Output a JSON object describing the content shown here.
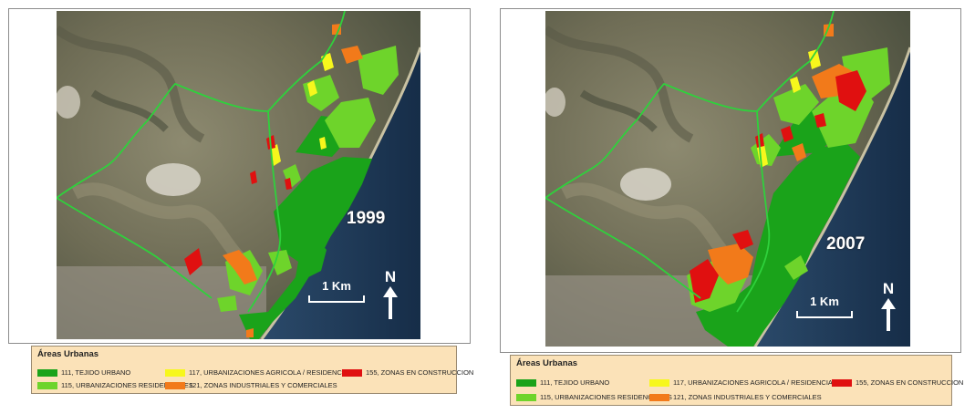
{
  "colors": {
    "tejido_urbano": "#1aa31a",
    "urbanizaciones_residenciales": "#6ed42b",
    "urbanizaciones_agricola": "#f7f71c",
    "zonas_industriales": "#f27a1a",
    "zonas_construccion": "#e01010",
    "boundary": "#2fd13c",
    "sea": "#1d3a5c",
    "legend_bg": "#fbe2b8"
  },
  "maps": [
    {
      "year": "1999",
      "scale_label": "1 Km",
      "north_label": "N",
      "legend": {
        "title": "Áreas Urbanas",
        "items": [
          {
            "label": "111, TEJIDO URBANO",
            "color": "#1aa31a"
          },
          {
            "label": "115, URBANIZACIONES RESIDENCIALES",
            "color": "#6ed42b"
          },
          {
            "label": "117, URBANIZACIONES AGRICOLA / RESIDENCIALES",
            "color": "#f7f71c"
          },
          {
            "label": "121, ZONAS INDUSTRIALES Y COMERCIALES",
            "color": "#f27a1a"
          },
          {
            "label": "155, ZONAS EN CONSTRUCCION",
            "color": "#e01010"
          }
        ]
      }
    },
    {
      "year": "2007",
      "scale_label": "1 Km",
      "north_label": "N",
      "legend": {
        "title": "Áreas Urbanas",
        "items": [
          {
            "label": "111, TEJIDO URBANO",
            "color": "#1aa31a"
          },
          {
            "label": "115, URBANIZACIONES RESIDENCIALES",
            "color": "#6ed42b"
          },
          {
            "label": "117, URBANIZACIONES AGRICOLA / RESIDENCIALES",
            "color": "#f7f71c"
          },
          {
            "label": "121, ZONAS INDUSTRIALES Y COMERCIALES",
            "color": "#f27a1a"
          },
          {
            "label": "155, ZONAS EN CONSTRUCCION",
            "color": "#e01010"
          }
        ]
      }
    }
  ]
}
